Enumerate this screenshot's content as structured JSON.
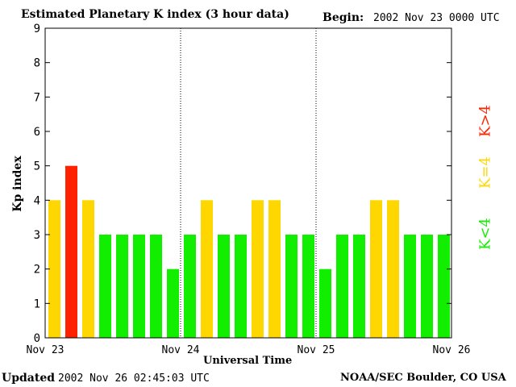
{
  "header": {
    "title": "Estimated Planetary K index (3 hour data)",
    "begin_label": "Begin:",
    "begin_value": "2002 Nov 23 0000 UTC"
  },
  "footer": {
    "updated_label": "Updated",
    "updated_value": "2002 Nov 26 02:45:03 UTC",
    "source": "NOAA/SEC Boulder, CO USA"
  },
  "legend": {
    "high": "K>4",
    "mid": "K=4",
    "low": "K<4"
  },
  "colors": {
    "high": "#ff2200",
    "mid": "#ffd700",
    "low": "#11ee00",
    "axis": "#000000"
  },
  "chart_data": {
    "type": "bar",
    "title": "Estimated Planetary K index (3 hour data)",
    "xlabel": "Universal Time",
    "ylabel": "Kp index",
    "ylim": [
      0,
      9
    ],
    "yticks": [
      0,
      1,
      2,
      3,
      4,
      5,
      6,
      7,
      8,
      9
    ],
    "day_labels": [
      "Nov 23",
      "Nov 24",
      "Nov 25",
      "Nov 26"
    ],
    "bars_per_day": 8,
    "values": [
      4,
      5,
      4,
      3,
      3,
      3,
      3,
      2,
      3,
      4,
      3,
      3,
      4,
      4,
      3,
      3,
      2,
      3,
      3,
      4,
      4,
      3,
      3,
      3
    ]
  }
}
